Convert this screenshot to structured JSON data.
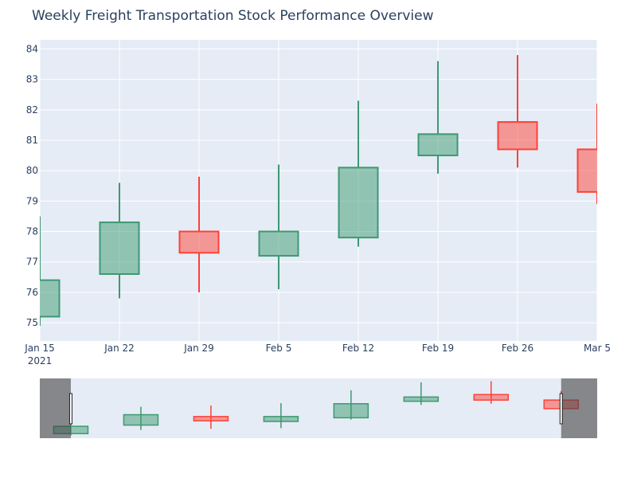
{
  "chart_data": {
    "type": "candlestick",
    "title": "Weekly Freight Transportation Stock Performance Overview",
    "xlabel": "",
    "ylabel": "",
    "ylim": [
      74.4,
      84.3
    ],
    "x_ticks": [
      {
        "label": "Jan 15",
        "sub": "2021",
        "day": 0
      },
      {
        "label": "Jan 22",
        "day": 7
      },
      {
        "label": "Jan 29",
        "day": 14
      },
      {
        "label": "Feb 5",
        "day": 21
      },
      {
        "label": "Feb 12",
        "day": 28
      },
      {
        "label": "Feb 19",
        "day": 35
      },
      {
        "label": "Feb 26",
        "day": 42
      },
      {
        "label": "Mar 5",
        "day": 49
      }
    ],
    "y_ticks": [
      75,
      76,
      77,
      78,
      79,
      80,
      81,
      82,
      83,
      84
    ],
    "candles": [
      {
        "date": "Jan 15",
        "day": 0,
        "open": 75.2,
        "high": 78.5,
        "low": 74.9,
        "close": 76.4
      },
      {
        "date": "Jan 22",
        "day": 7,
        "open": 76.6,
        "high": 79.6,
        "low": 75.8,
        "close": 78.3
      },
      {
        "date": "Jan 29",
        "day": 14,
        "open": 78.0,
        "high": 79.8,
        "low": 76.0,
        "close": 77.3
      },
      {
        "date": "Feb 5",
        "day": 21,
        "open": 77.2,
        "high": 80.2,
        "low": 76.1,
        "close": 78.0
      },
      {
        "date": "Feb 12",
        "day": 28,
        "open": 77.8,
        "high": 82.3,
        "low": 77.5,
        "close": 80.1
      },
      {
        "date": "Feb 19",
        "day": 35,
        "open": 80.5,
        "high": 83.6,
        "low": 79.9,
        "close": 81.2
      },
      {
        "date": "Feb 26",
        "day": 42,
        "open": 81.6,
        "high": 83.8,
        "low": 80.1,
        "close": 80.7
      },
      {
        "date": "Mar 5",
        "day": 49,
        "open": 80.7,
        "high": 82.2,
        "low": 78.9,
        "close": 79.3
      }
    ],
    "colors": {
      "increasing_line": "#3d9970",
      "increasing_fill": "rgba(61,153,112,0.5)",
      "decreasing_line": "#ff4136",
      "decreasing_fill": "rgba(255,65,54,0.5)",
      "plot_bg": "#e5ecf6",
      "grid": "#ffffff",
      "text": "#2a3f5f"
    },
    "rangeslider": {
      "visible": true,
      "range_days": [
        -3.1,
        52.6
      ],
      "view_days": [
        0,
        49
      ]
    }
  }
}
